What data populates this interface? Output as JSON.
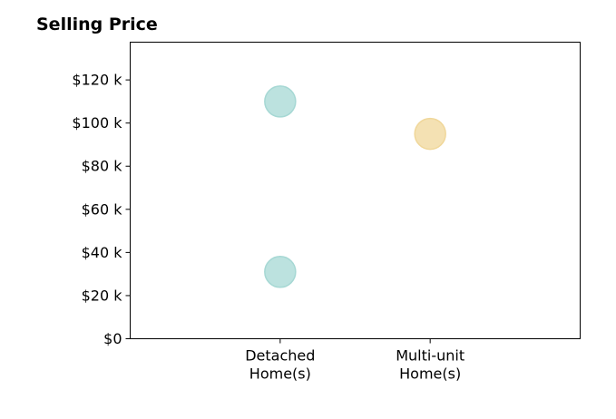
{
  "chart_data": {
    "type": "scatter",
    "title": "Selling Price",
    "xlabel": "",
    "ylabel": "",
    "categories": [
      [
        "Detached",
        "Home(s)"
      ],
      [
        "Multi-unit",
        "Home(s)"
      ]
    ],
    "y_ticks": [
      {
        "value": 0,
        "label": "$0"
      },
      {
        "value": 20000,
        "label": "$20 k"
      },
      {
        "value": 40000,
        "label": "$40 k"
      },
      {
        "value": 60000,
        "label": "$60 k"
      },
      {
        "value": 80000,
        "label": "$80 k"
      },
      {
        "value": 100000,
        "label": "$100 k"
      },
      {
        "value": 120000,
        "label": "$120 k"
      }
    ],
    "ylim": [
      0,
      137500
    ],
    "xlim": [
      -1,
      2
    ],
    "grid": false,
    "legend": "none",
    "series": [
      {
        "category_index": 0,
        "color": "#a6d8d4",
        "points": [
          110000,
          31000
        ]
      },
      {
        "category_index": 1,
        "color": "#f0d79a",
        "points": [
          95000
        ]
      }
    ]
  }
}
